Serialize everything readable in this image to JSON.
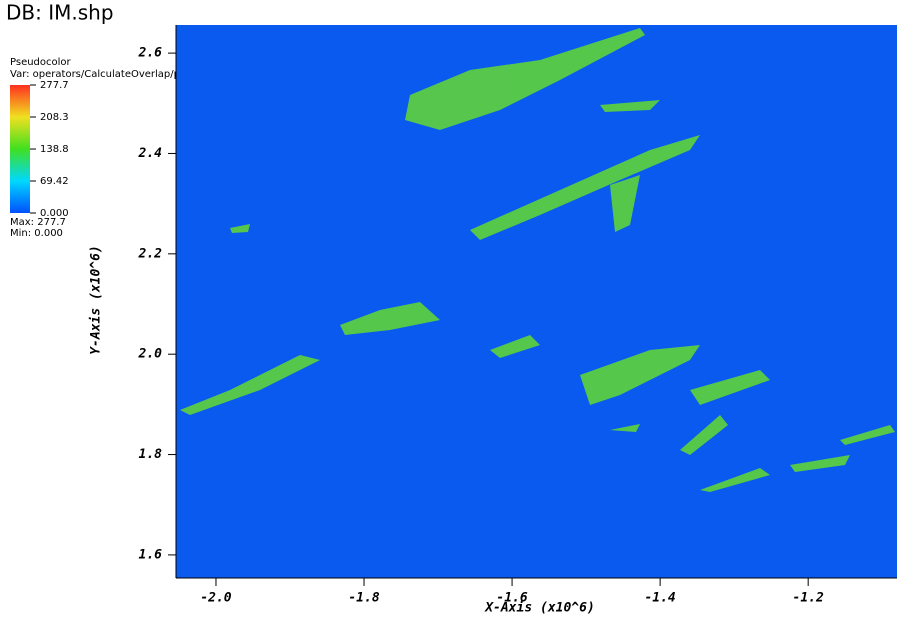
{
  "chart_data": {
    "type": "pseudocolor",
    "title": "DB: IM.shp",
    "plot_label": "Pseudocolor",
    "variable_label": "Var: operators/CalculateOverlap/polygon",
    "max_label": "Max:  277.7",
    "min_label": "Min:  0.000",
    "x_label": "X-Axis  (x10^6)",
    "y_label": "Y-Axis  (x10^6)",
    "background_color": "#0a5af0",
    "xlim": [
      -2.054,
      -1.08
    ],
    "xticks": [
      {
        "value": -2.0,
        "label": "-2.0"
      },
      -1.8,
      -1.6,
      -1.4,
      -1.2
    ],
    "ylim": [
      1.554,
      2.656
    ],
    "yticks": [
      1.6,
      1.8,
      {
        "value": 2.0,
        "label": "2.0"
      },
      2.2,
      2.4,
      2.6
    ],
    "colorbar": {
      "lim": [
        0,
        277.7
      ],
      "ticks": [
        {
          "value": 0,
          "label": "0.000"
        },
        69.42,
        138.8,
        208.3,
        277.7
      ],
      "colors": [
        "#0050ff",
        "#00d8ff",
        "#40e020",
        "#f0e020",
        "#ff3020"
      ]
    }
  }
}
